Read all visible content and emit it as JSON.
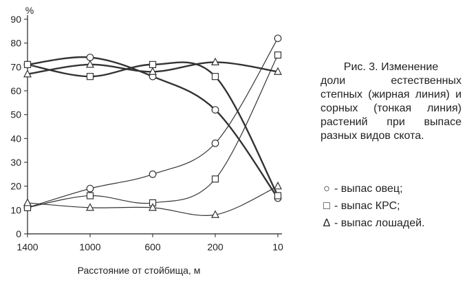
{
  "caption": {
    "line1": "Рис. 3.     Изменение",
    "rest": "доли естественных степных (жирная линия) и сорных (тонкая линия) растений при выпасе разных видов скота."
  },
  "legend": [
    {
      "symbol": "○",
      "text": "- выпас овец;"
    },
    {
      "symbol": "□",
      "text": "- выпас КРС;"
    },
    {
      "symbol": "Δ",
      "text": "- выпас лошадей."
    }
  ],
  "chart_data": {
    "type": "line",
    "ylabel": "%",
    "xlabel": "Расстояние от стойбища, м",
    "categories": [
      "1400",
      "1000",
      "600",
      "200",
      "10"
    ],
    "ylim": [
      0,
      90
    ],
    "yticks": [
      0,
      10,
      20,
      30,
      40,
      50,
      60,
      70,
      80,
      90
    ],
    "grid": false,
    "series": [
      {
        "name": "- выпас овец;",
        "marker": "circle",
        "weight": "thick",
        "x": [
          1400,
          1000,
          600,
          200,
          10
        ],
        "values": [
          71,
          74,
          66,
          52,
          15
        ]
      },
      {
        "name": "- выпас КРС;",
        "marker": "square",
        "weight": "thick",
        "x": [
          1400,
          1000,
          600,
          200,
          10
        ],
        "values": [
          71,
          66,
          71,
          66,
          16
        ]
      },
      {
        "name": "- выпас лошадей.",
        "marker": "triangle",
        "weight": "thick",
        "x": [
          1400,
          1000,
          600,
          200,
          10
        ],
        "values": [
          67,
          71,
          68,
          72,
          68
        ]
      },
      {
        "name": "- выпас овец;",
        "marker": "circle",
        "weight": "thin",
        "x": [
          1400,
          1000,
          600,
          200,
          10
        ],
        "values": [
          11,
          19,
          25,
          38,
          82
        ]
      },
      {
        "name": "- выпас КРС;",
        "marker": "square",
        "weight": "thin",
        "x": [
          1400,
          1000,
          600,
          200,
          10
        ],
        "values": [
          11,
          16,
          13,
          23,
          75
        ]
      },
      {
        "name": "- выпас лошадей.",
        "marker": "triangle",
        "weight": "thin",
        "x": [
          1400,
          1000,
          600,
          200,
          10
        ],
        "values": [
          13,
          11,
          11,
          8,
          20
        ]
      }
    ]
  }
}
